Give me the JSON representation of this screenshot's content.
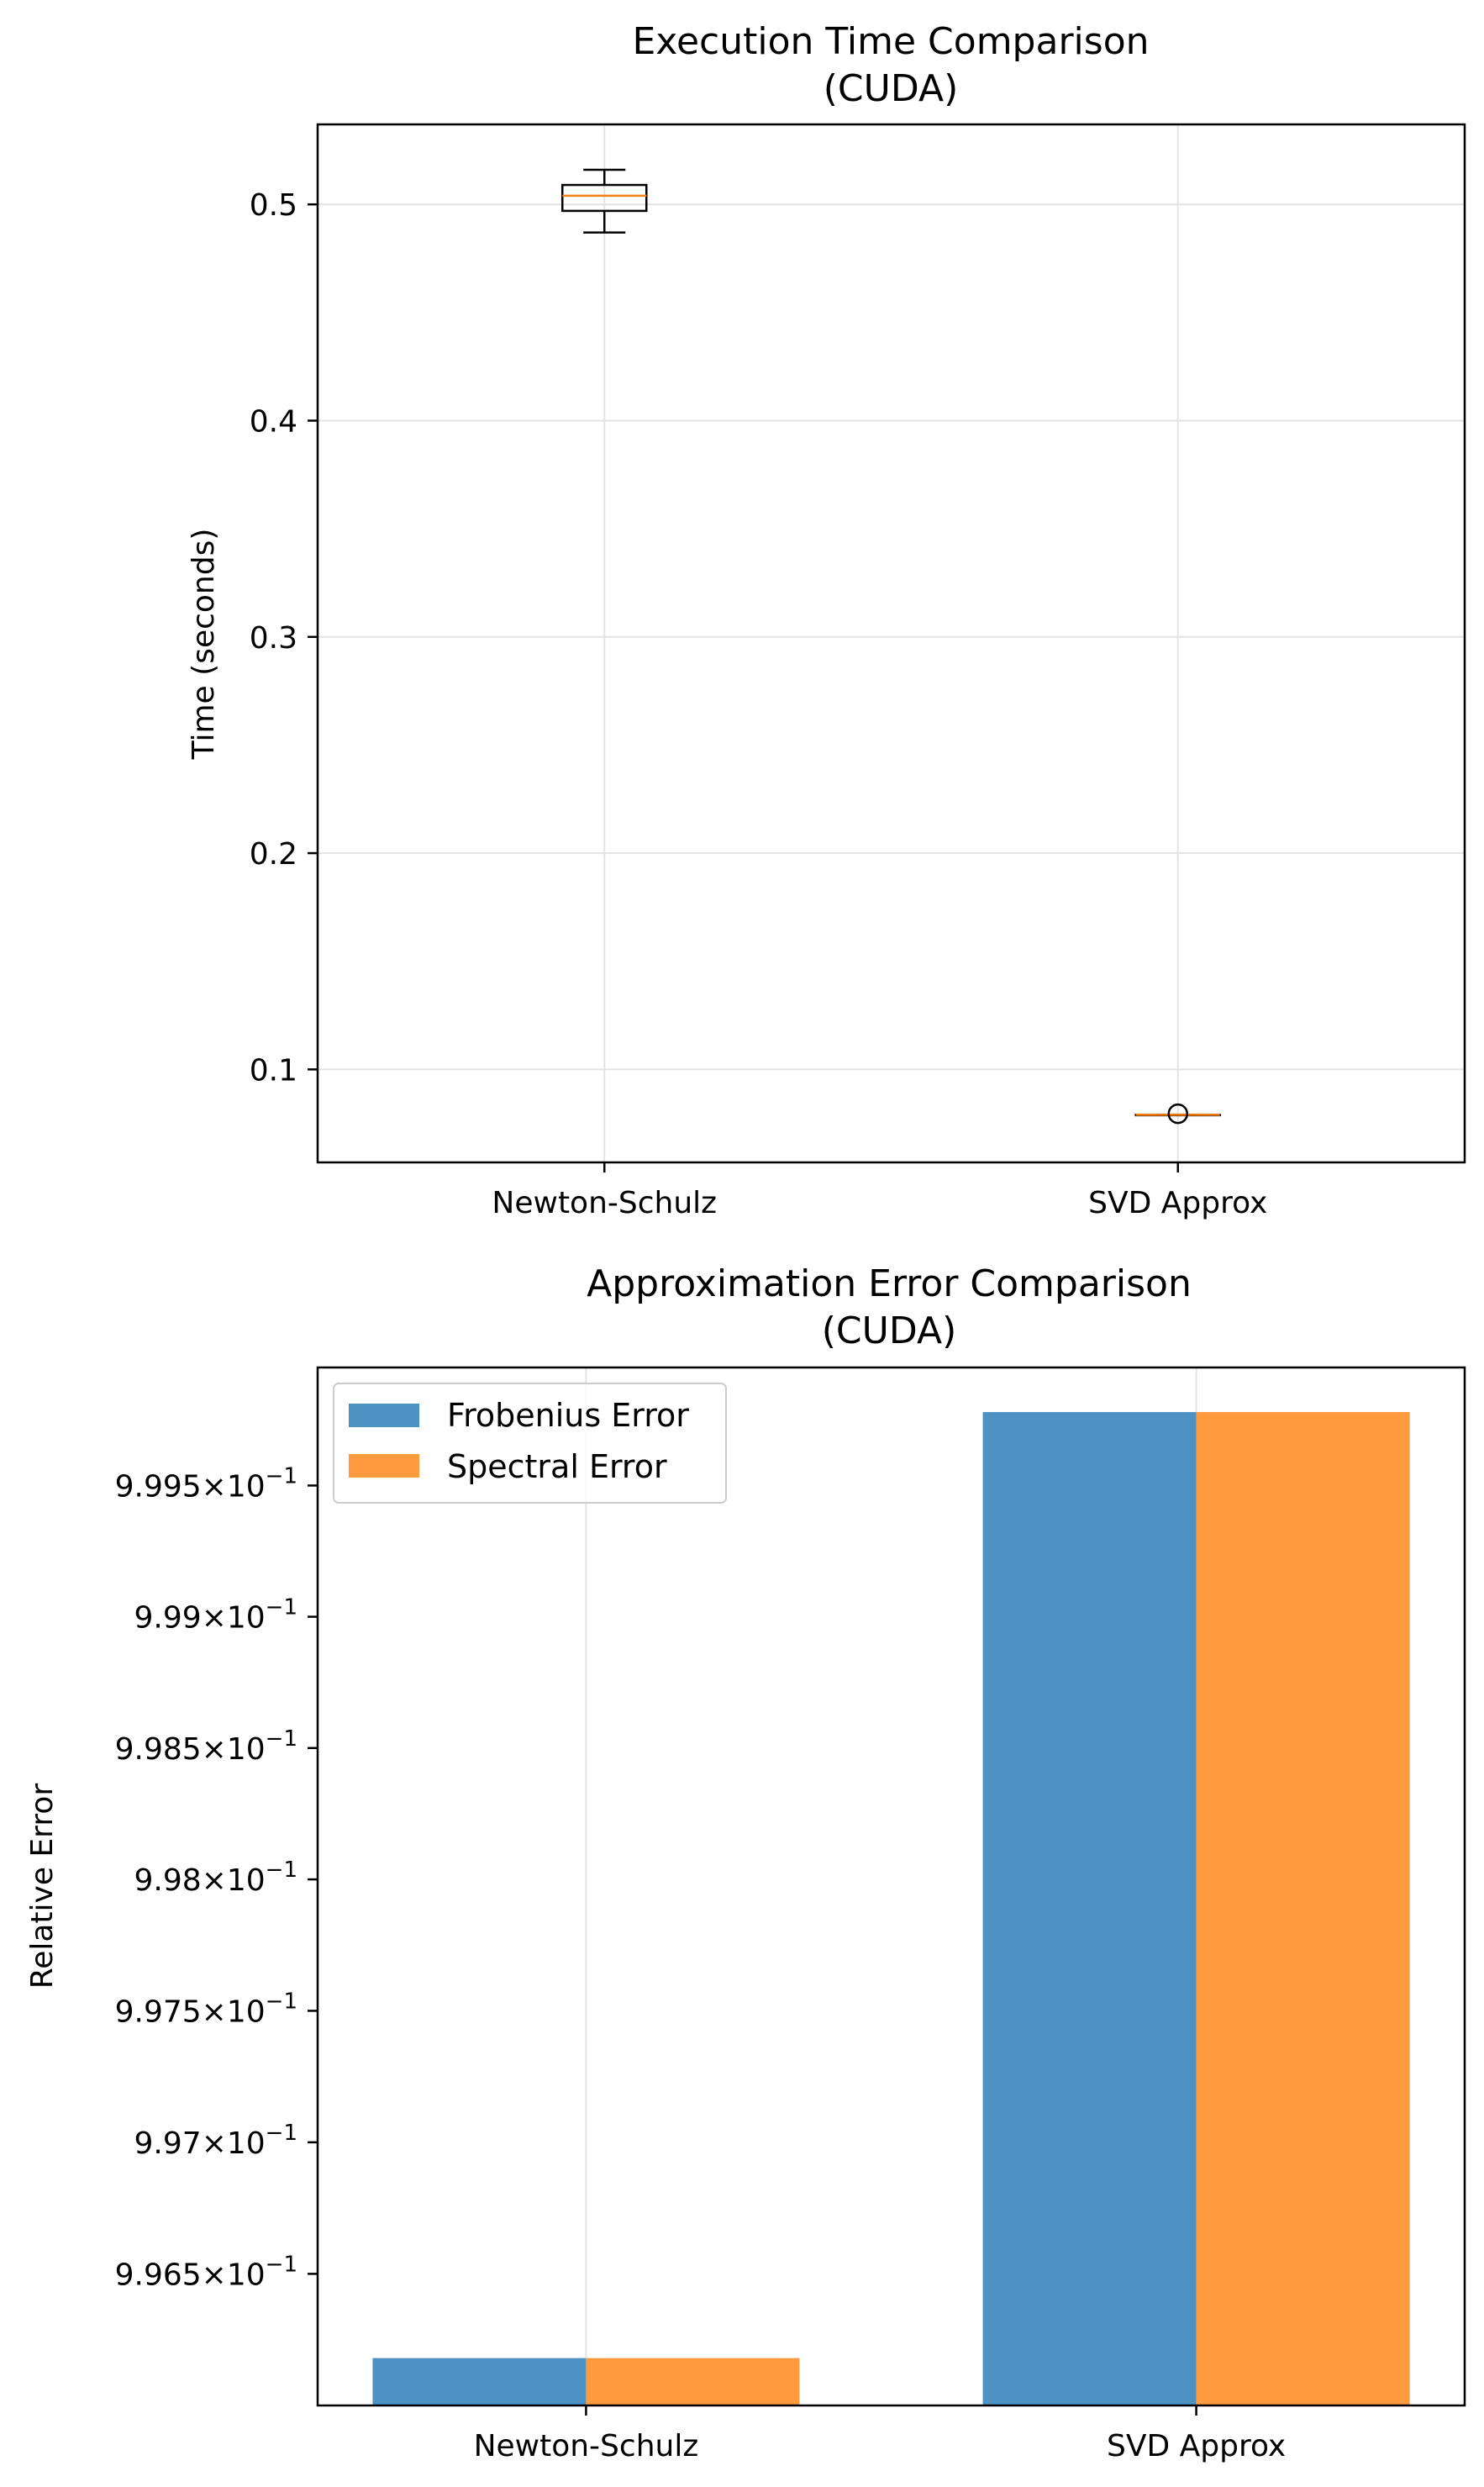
{
  "colors": {
    "frobenius": "#4c93c3",
    "spectral": "#ff9a3f",
    "median": "#ff7f0e",
    "grid": "#e3e3e3",
    "axis": "#000000"
  },
  "chart_data": [
    {
      "type": "box",
      "title_line1": "Execution Time Comparison",
      "title_line2": "(CUDA)",
      "xlabel": "",
      "ylabel": "Time (seconds)",
      "ylim": [
        0.057,
        0.537
      ],
      "yticks": [
        0.1,
        0.2,
        0.3,
        0.4,
        0.5
      ],
      "ytick_labels": [
        "0.1",
        "0.2",
        "0.3",
        "0.4",
        "0.5"
      ],
      "grid": true,
      "categories": [
        "Newton-Schulz",
        "SVD Approx"
      ],
      "boxes": [
        {
          "category": "Newton-Schulz",
          "whisker_low": 0.487,
          "q1": 0.497,
          "median": 0.504,
          "q3": 0.509,
          "whisker_high": 0.516,
          "outliers": []
        },
        {
          "category": "SVD Approx",
          "whisker_low": 0.079,
          "q1": 0.079,
          "median": 0.079,
          "q3": 0.079,
          "whisker_high": 0.079,
          "outliers": [
            0.0795
          ]
        }
      ]
    },
    {
      "type": "bar",
      "title_line1": "Approximation Error Comparison",
      "title_line2": "(CUDA)",
      "xlabel": "",
      "ylabel": "Relative Error",
      "yscale": "log",
      "ylim": [
        0.996,
        0.99995
      ],
      "yticks": [
        0.9965,
        0.997,
        0.9975,
        0.998,
        0.9985,
        0.999,
        0.9995
      ],
      "ytick_mantissas": [
        "9.965",
        "9.97",
        "9.975",
        "9.98",
        "9.985",
        "9.99",
        "9.995"
      ],
      "ytick_times": "×",
      "ytick_base": "10",
      "ytick_exponent": "−1",
      "grid": true,
      "legend_position": "top-left",
      "categories": [
        "Newton-Schulz",
        "SVD Approx"
      ],
      "series": [
        {
          "name": "Frobenius Error",
          "values": [
            0.99618,
            0.99978
          ]
        },
        {
          "name": "Spectral Error",
          "values": [
            0.99618,
            0.99978
          ]
        }
      ]
    }
  ]
}
